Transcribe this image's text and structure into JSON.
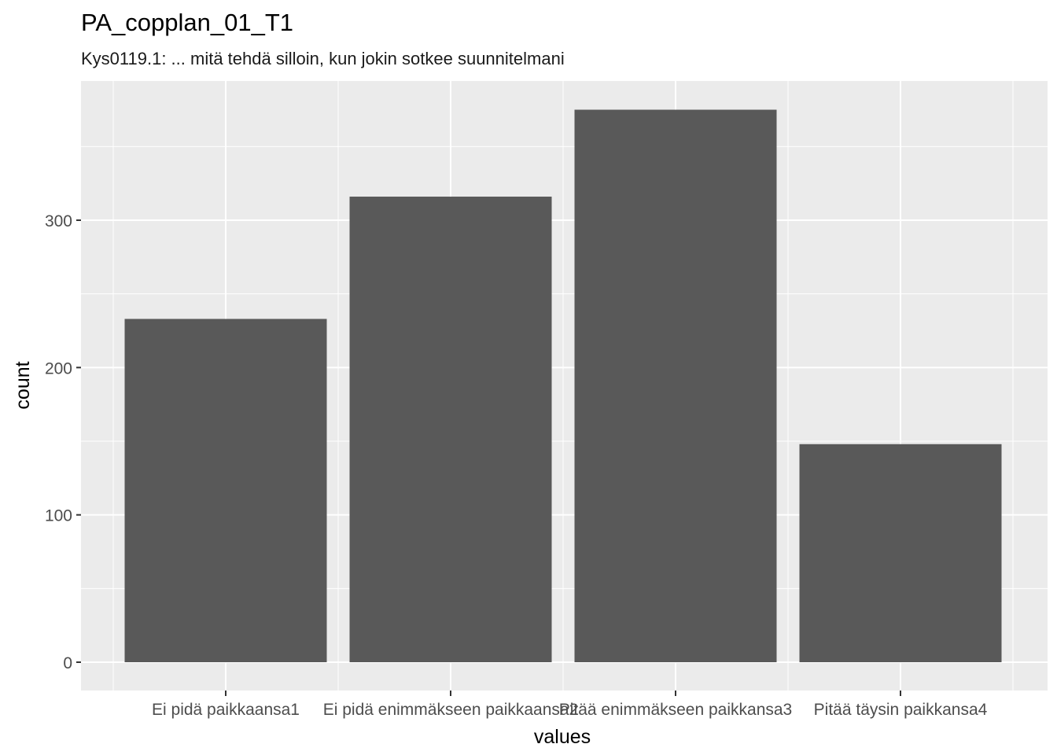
{
  "chart_data": {
    "type": "bar",
    "title": "PA_copplan_01_T1",
    "subtitle": "Kys0119.1: ... mitä tehdä silloin, kun jokin sotkee suunnitelmani",
    "xlabel": "values",
    "ylabel": "count",
    "categories": [
      "Ei pidä paikkaansa1",
      "Ei pidä enimmäkseen paikkaansa2",
      "Pitää enimmäkseen paikkansa3",
      "Pitää täysin paikkansa4"
    ],
    "values": [
      233,
      316,
      375,
      148
    ],
    "ylim": [
      0,
      400
    ],
    "yticks": [
      0,
      100,
      200,
      300
    ],
    "grid": true,
    "colors": {
      "panel": "#ebebeb",
      "grid": "#ffffff",
      "bar": "#595959",
      "tick_label": "#4d4d4d",
      "axis_title": "#000000"
    }
  }
}
